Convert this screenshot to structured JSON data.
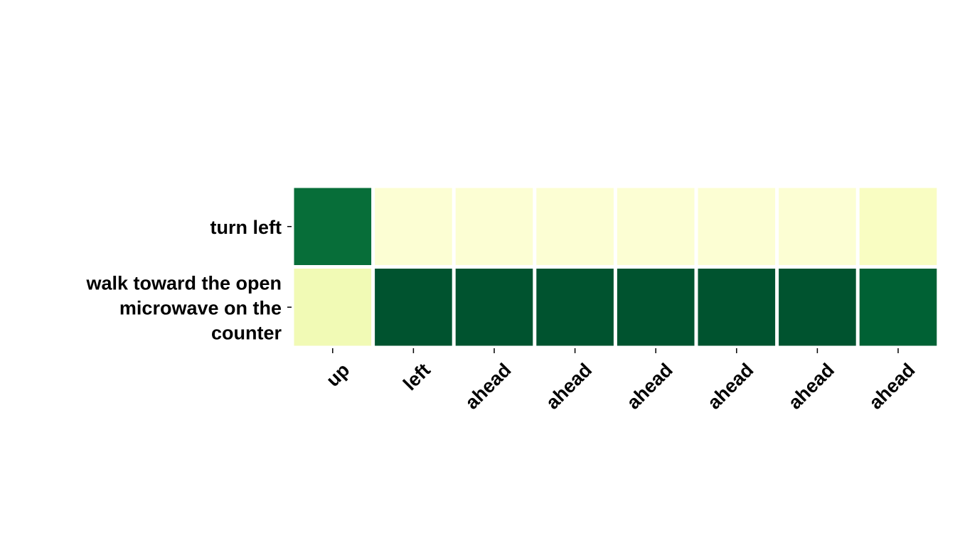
{
  "chart_data": {
    "type": "heatmap",
    "title": "",
    "xlabel": "",
    "ylabel": "",
    "x_categories": [
      "up",
      "left",
      "ahead",
      "ahead",
      "ahead",
      "ahead",
      "ahead",
      "ahead"
    ],
    "y_categories": [
      "turn left",
      "walk toward the open microwave on the counter"
    ],
    "values": [
      [
        0.85,
        0.05,
        0.05,
        0.05,
        0.05,
        0.05,
        0.05,
        0.1
      ],
      [
        0.15,
        0.95,
        0.95,
        0.95,
        0.95,
        0.95,
        0.95,
        0.9
      ]
    ],
    "colormap": "YlGn",
    "value_range": [
      0,
      1
    ],
    "colorbar": false,
    "grid": false
  }
}
